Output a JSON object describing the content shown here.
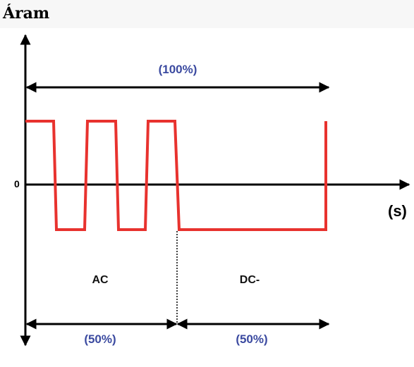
{
  "title": "Áram",
  "labels": {
    "total_percent": "(100%)",
    "ac": "AC",
    "dc": "DC-",
    "ac_percent": "(50%)",
    "dc_percent": "(50%)",
    "zero": "0",
    "x_unit": "(s)"
  },
  "colors": {
    "waveform": "#e8322e",
    "percent_text": "#3b4aa0",
    "axes": "#000000",
    "background": "#ffffff"
  }
}
